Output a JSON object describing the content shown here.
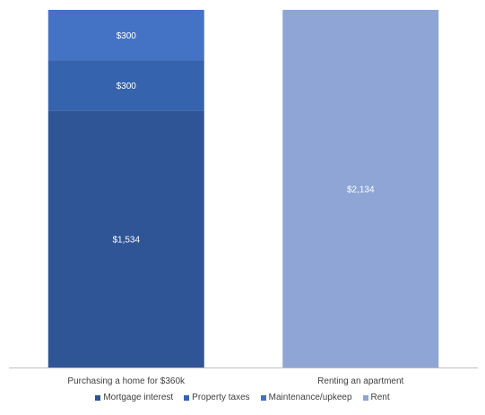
{
  "chart_data": {
    "type": "bar",
    "stacked": true,
    "categories": [
      "Purchasing a home for $360k",
      "Renting an apartment"
    ],
    "series": [
      {
        "name": "Mortgage interest",
        "values": [
          1534,
          0
        ],
        "labels": [
          "$1,534",
          ""
        ],
        "color": "#2f5597"
      },
      {
        "name": "Property taxes",
        "values": [
          300,
          0
        ],
        "labels": [
          "$300",
          ""
        ],
        "color": "#3563ad"
      },
      {
        "name": "Maintenance/upkeep",
        "values": [
          300,
          0
        ],
        "labels": [
          "$300",
          ""
        ],
        "color": "#4472c4"
      },
      {
        "name": "Rent",
        "values": [
          0,
          2134
        ],
        "labels": [
          "",
          "$2,134"
        ],
        "color": "#8fa5d6"
      }
    ],
    "ylim": [
      0,
      2134
    ],
    "grid": false,
    "legend_position": "bottom",
    "data_label_color": "#ffffff",
    "axis_color": "#bfbfbf",
    "text_color": "#404040"
  }
}
